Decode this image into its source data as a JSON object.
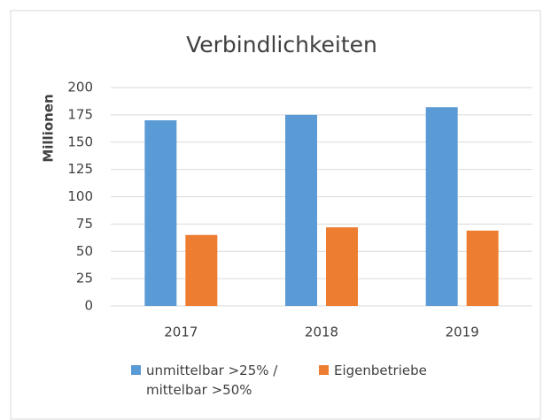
{
  "chart_data": {
    "type": "bar",
    "title": "Verbindlichkeiten",
    "y_label": "Millionen",
    "categories": [
      "2017",
      "2018",
      "2019"
    ],
    "series": [
      {
        "name": "unmittelbar >25% / mittelbar >50%",
        "color": "#5b9bd5",
        "values": [
          170,
          175,
          182
        ]
      },
      {
        "name": "Eigenbetriebe",
        "color": "#ed7d31",
        "values": [
          65,
          72,
          69
        ]
      }
    ],
    "ylim": [
      0,
      200
    ],
    "yticks": [
      0,
      25,
      50,
      75,
      100,
      125,
      150,
      175,
      200
    ],
    "grid": true
  }
}
